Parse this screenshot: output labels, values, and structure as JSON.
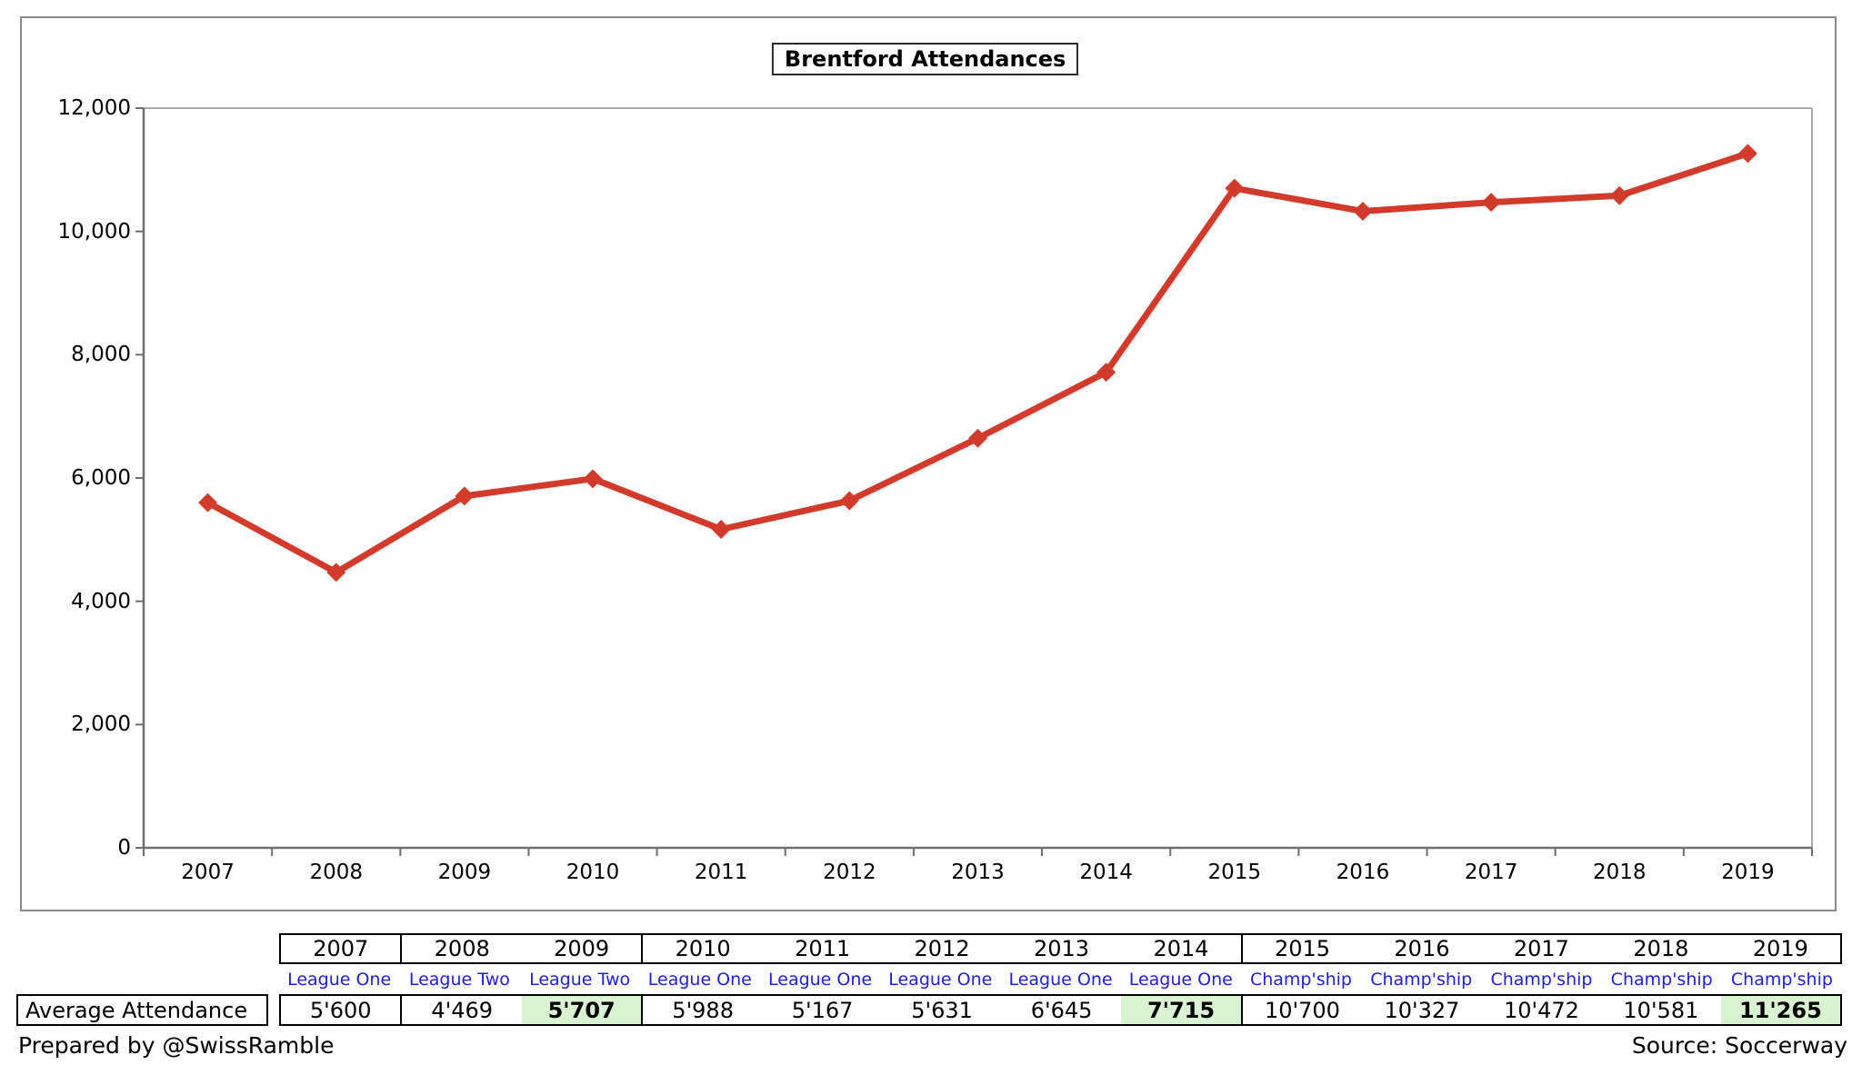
{
  "title": "Brentford Attendances",
  "colors": {
    "line": "#d23b2b",
    "highlight_bg": "#d9f2d2",
    "league_text": "#2020d8",
    "axis": "#6f6f6f",
    "plot_frame": "#a9a9a9",
    "chart_border": "#8a8a8a",
    "table_border": "#000000"
  },
  "chart_data": {
    "type": "line",
    "title": "Brentford Attendances",
    "categories": [
      "2007",
      "2008",
      "2009",
      "2010",
      "2011",
      "2012",
      "2013",
      "2014",
      "2015",
      "2016",
      "2017",
      "2018",
      "2019"
    ],
    "series": [
      {
        "name": "Average Attendance",
        "values": [
          5600,
          4469,
          5707,
          5988,
          5167,
          5631,
          6645,
          7715,
          10700,
          10327,
          10472,
          10581,
          11265
        ]
      }
    ],
    "xlabel": "",
    "ylabel": "",
    "ylim": [
      0,
      12000
    ],
    "y_tick_step": 2000,
    "y_tick_labels": [
      "0",
      "2,000",
      "4,000",
      "6,000",
      "8,000",
      "10,000",
      "12,000"
    ],
    "grid": false,
    "legend": false,
    "marker": "diamond"
  },
  "table": {
    "row_label": "Average Attendance",
    "group_sizes": [
      1,
      2,
      5,
      5
    ],
    "columns": [
      {
        "year": "2007",
        "league": "League One",
        "value": "5'600",
        "highlight": false
      },
      {
        "year": "2008",
        "league": "League Two",
        "value": "4'469",
        "highlight": false
      },
      {
        "year": "2009",
        "league": "League Two",
        "value": "5'707",
        "highlight": true
      },
      {
        "year": "2010",
        "league": "League One",
        "value": "5'988",
        "highlight": false
      },
      {
        "year": "2011",
        "league": "League One",
        "value": "5'167",
        "highlight": false
      },
      {
        "year": "2012",
        "league": "League One",
        "value": "5'631",
        "highlight": false
      },
      {
        "year": "2013",
        "league": "League One",
        "value": "6'645",
        "highlight": false
      },
      {
        "year": "2014",
        "league": "League One",
        "value": "7'715",
        "highlight": true
      },
      {
        "year": "2015",
        "league": "Champ'ship",
        "value": "10'700",
        "highlight": false
      },
      {
        "year": "2016",
        "league": "Champ'ship",
        "value": "10'327",
        "highlight": false
      },
      {
        "year": "2017",
        "league": "Champ'ship",
        "value": "10'472",
        "highlight": false
      },
      {
        "year": "2018",
        "league": "Champ'ship",
        "value": "10'581",
        "highlight": false
      },
      {
        "year": "2019",
        "league": "Champ'ship",
        "value": "11'265",
        "highlight": true
      }
    ]
  },
  "footer": {
    "left": "Prepared by @SwissRamble",
    "right": "Source: Soccerway"
  }
}
